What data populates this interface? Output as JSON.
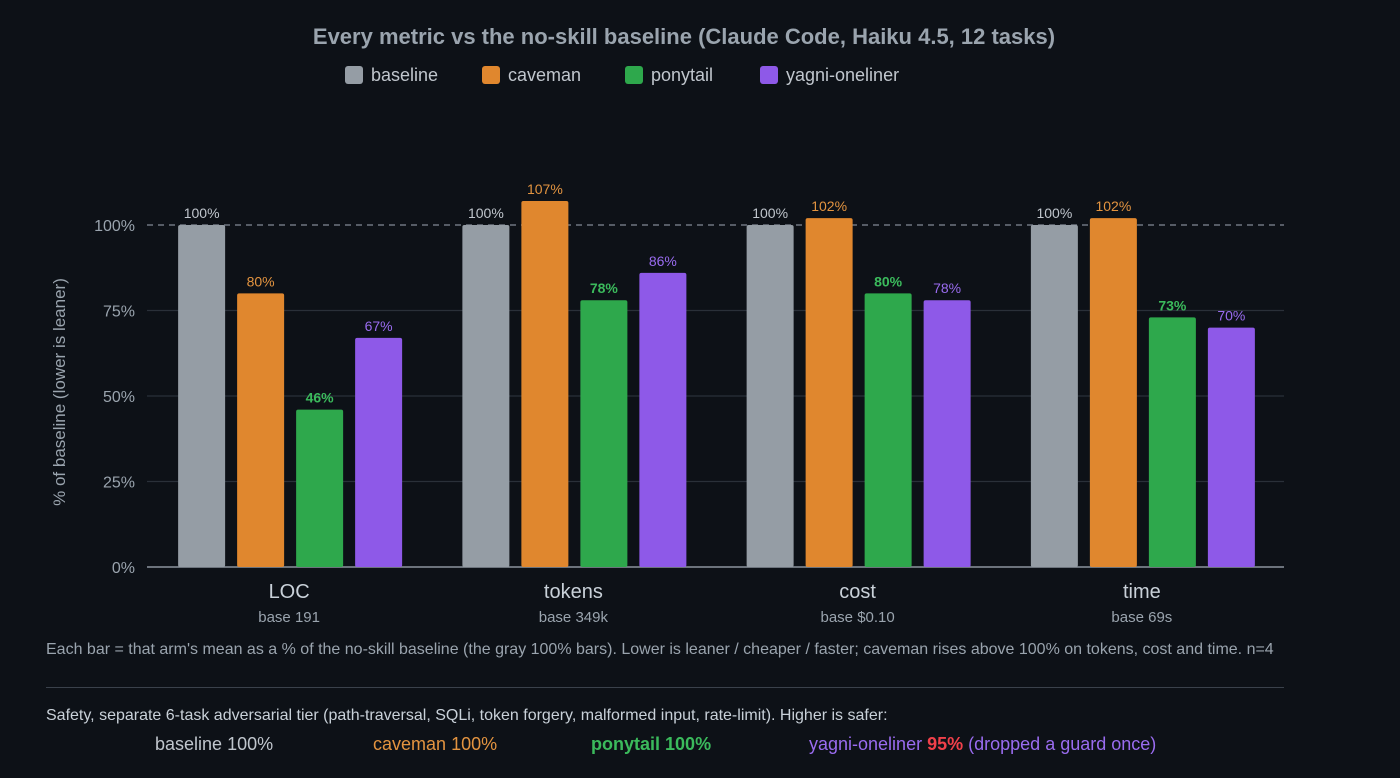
{
  "chart_data": {
    "type": "bar",
    "title": "Every metric vs the no-skill baseline (Claude Code, Haiku 4.5, 12 tasks)",
    "ylabel": "% of baseline (lower is leaner)",
    "ylim": [
      0,
      100
    ],
    "yticks": [
      "0%",
      "25%",
      "50%",
      "75%",
      "100%"
    ],
    "ytick_values": [
      0,
      25,
      50,
      75,
      100
    ],
    "reference_line": 100,
    "legend_position": "top-center",
    "categories": [
      "LOC",
      "tokens",
      "cost",
      "time"
    ],
    "category_sublabels": [
      "base 191",
      "base 349k",
      "base $0.10",
      "base 69s"
    ],
    "series": [
      {
        "name": "baseline",
        "color": "#959da5",
        "values": [
          100,
          100,
          100,
          100
        ],
        "labels": [
          "100%",
          "100%",
          "100%",
          "100%"
        ]
      },
      {
        "name": "caveman",
        "color": "#e0872e",
        "values": [
          80,
          107,
          102,
          102
        ],
        "labels": [
          "80%",
          "107%",
          "102%",
          "102%"
        ]
      },
      {
        "name": "ponytail",
        "color": "#2ea84c",
        "values": [
          46,
          78,
          80,
          73
        ],
        "labels": [
          "46%",
          "78%",
          "80%",
          "73%"
        ]
      },
      {
        "name": "yagni-oneliner",
        "color": "#8e59e8",
        "values": [
          67,
          86,
          78,
          70
        ],
        "labels": [
          "67%",
          "86%",
          "78%",
          "70%"
        ]
      }
    ],
    "label_colors": [
      "#c0c6cd",
      "#e39440",
      "#3bba5c",
      "#9a6cf0"
    ]
  },
  "note": "Each bar = that arm's mean as a % of the no-skill baseline (the gray 100% bars). Lower is leaner / cheaper / faster; caveman rises above 100% on tokens, cost and time. n=4",
  "safety": {
    "title": "Safety, separate 6-task adversarial tier (path-traversal, SQLi, token forgery, malformed input, rate-limit). Higher is safer:",
    "items": [
      {
        "name": "baseline",
        "value": "100%",
        "color": "#c0c6cd"
      },
      {
        "name": "caveman",
        "value": "100%",
        "color": "#e39440"
      },
      {
        "name": "ponytail",
        "value": "100%",
        "color": "#3bba5c"
      },
      {
        "name": "yagni-oneliner",
        "value": "95%",
        "color": "#9a6cf0",
        "value_color": "#f0404a",
        "extra": "(dropped a guard once)"
      }
    ]
  }
}
